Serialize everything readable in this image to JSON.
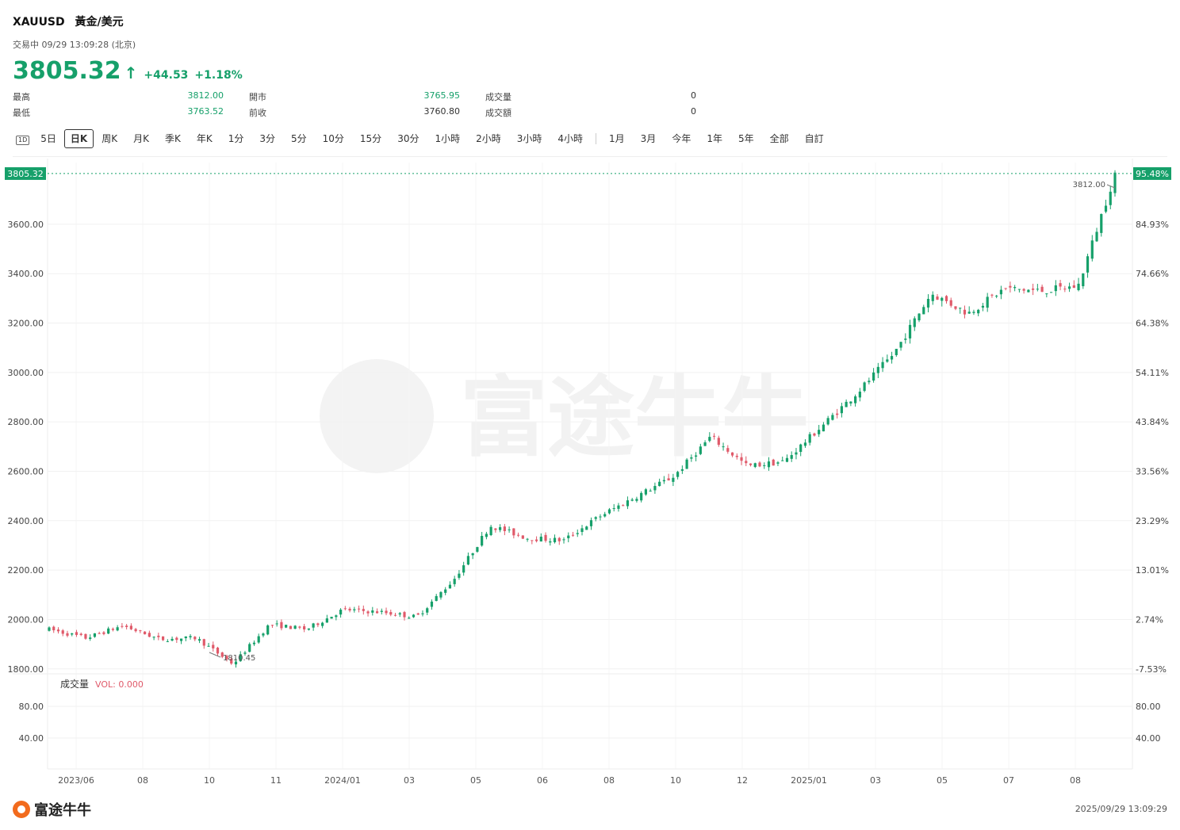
{
  "header": {
    "symbol": "XAUUSD",
    "name": "黃金/美元",
    "status": "交易中 09/29 13:09:28 (北京)",
    "price": "3805.32",
    "change": "+44.53",
    "change_pct": "+1.18%"
  },
  "stats": {
    "high_label": "最高",
    "high": "3812.00",
    "low_label": "最低",
    "low": "3763.52",
    "open_label": "開市",
    "open": "3765.95",
    "prev_label": "前收",
    "prev": "3760.80",
    "vol_label": "成交量",
    "vol": "0",
    "amount_label": "成交額",
    "amount": "0"
  },
  "tabs": [
    "1D",
    "5日",
    "日K",
    "周K",
    "月K",
    "季K",
    "年K",
    "1分",
    "3分",
    "5分",
    "10分",
    "15分",
    "30分",
    "1小時",
    "2小時",
    "3小時",
    "4小時",
    "1月",
    "3月",
    "今年",
    "1年",
    "5年",
    "全部",
    "自訂"
  ],
  "active_tab": "日K",
  "colors": {
    "up": "#16a06a",
    "down": "#e05a6a",
    "accent": "#16a06a"
  },
  "chart_data": {
    "type": "candlestick",
    "title": "",
    "y_range": [
      1780,
      3850
    ],
    "y_ticks": [
      "3600.00",
      "3400.00",
      "3200.00",
      "3000.00",
      "2800.00",
      "2600.00",
      "2400.00",
      "2200.00",
      "2000.00",
      "1800.00"
    ],
    "y_right_ticks": [
      "95.48%",
      "84.93%",
      "74.66%",
      "64.38%",
      "54.11%",
      "43.84%",
      "33.56%",
      "23.29%",
      "13.01%",
      "2.74%",
      "-7.53%"
    ],
    "x_ticks": [
      "2023/06",
      "08",
      "10",
      "11",
      "2024/01",
      "03",
      "05",
      "06",
      "08",
      "10",
      "12",
      "2025/01",
      "03",
      "05",
      "07",
      "08"
    ],
    "current_price_label": "3805.32",
    "current_pct_label": "95.48%",
    "max_label": "3812.00",
    "min_label": "1810.45",
    "trend": [
      [
        "2023/06",
        1960
      ],
      [
        "2023/07",
        1925
      ],
      [
        "2023/07",
        1975
      ],
      [
        "2023/08",
        1920
      ],
      [
        "2023/09",
        1925
      ],
      [
        "2023/10",
        1820
      ],
      [
        "2023/10",
        1980
      ],
      [
        "2023/11",
        1960
      ],
      [
        "2023/12",
        2040
      ],
      [
        "2024/01",
        2030
      ],
      [
        "2024/02",
        2010
      ],
      [
        "2024/03",
        2160
      ],
      [
        "2024/04",
        2380
      ],
      [
        "2024/05",
        2330
      ],
      [
        "2024/06",
        2320
      ],
      [
        "2024/07",
        2420
      ],
      [
        "2024/08",
        2500
      ],
      [
        "2024/09",
        2580
      ],
      [
        "2024/10",
        2740
      ],
      [
        "2024/11",
        2620
      ],
      [
        "2024/12",
        2640
      ],
      [
        "2025/01",
        2780
      ],
      [
        "2025/02",
        2920
      ],
      [
        "2025/03",
        3080
      ],
      [
        "2025/04",
        3320
      ],
      [
        "2025/05",
        3240
      ],
      [
        "2025/06",
        3340
      ],
      [
        "2025/07",
        3330
      ],
      [
        "2025/08",
        3350
      ],
      [
        "2025/09",
        3805
      ]
    ],
    "volume_panel": {
      "label": "成交量",
      "indicator": "VOL: 0.000",
      "y_ticks": [
        "80.00",
        "40.00"
      ]
    }
  },
  "watermark": "富途牛牛",
  "footer": {
    "brand": "富途牛牛",
    "timestamp": "2025/09/29 13:09:29"
  }
}
